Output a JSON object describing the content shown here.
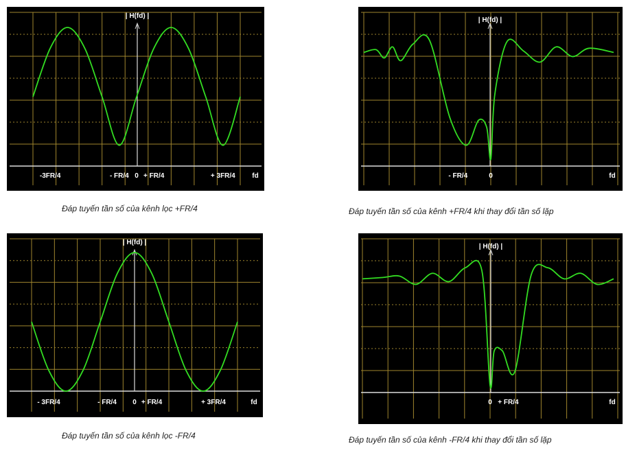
{
  "colors": {
    "panel_bg": "#000000",
    "grid": "#a0862e",
    "curve": "#33dd22",
    "axis": "#dddddd",
    "label": "#ffffff"
  },
  "chart_data": [
    {
      "type": "line",
      "ylabel": "| H(fd) |",
      "xlabel": "fd",
      "tick_labels": [
        "-3FR/4",
        "- FR/4",
        "0",
        "+ FR/4",
        "+ 3FR/4"
      ],
      "x": [
        -1.5,
        -1.25,
        -1.0,
        -0.75,
        -0.5,
        -0.25,
        0,
        0.25,
        0.5,
        0.75,
        1.0,
        1.25,
        1.5
      ],
      "y": [
        0.5,
        0.85,
        1.0,
        0.85,
        0.5,
        0.15,
        0.5,
        0.85,
        1.0,
        0.85,
        0.5,
        0.15,
        0.5
      ],
      "caption": "Đáp tuyến tần số của kênh lọc +FR/4"
    },
    {
      "type": "line",
      "ylabel": "| H(fd) |",
      "xlabel": "fd",
      "tick_labels": [
        "- FR/4",
        "0"
      ],
      "x": [
        -1.55,
        -1.4,
        -1.3,
        -1.2,
        -1.1,
        -0.95,
        -0.75,
        -0.5,
        -0.3,
        -0.15,
        -0.05,
        0,
        0.05,
        0.2,
        0.4,
        0.6,
        0.8,
        1.0,
        1.2,
        1.5
      ],
      "y": [
        0.82,
        0.84,
        0.78,
        0.86,
        0.76,
        0.88,
        0.91,
        0.35,
        0.15,
        0.33,
        0.28,
        0.05,
        0.52,
        0.9,
        0.83,
        0.75,
        0.86,
        0.79,
        0.85,
        0.82
      ],
      "caption": "Đáp tuyến tần số của kênh +FR/4 khi thay đổi tần số lặp"
    },
    {
      "type": "line",
      "ylabel": "| H(fd) |",
      "xlabel": "fd",
      "tick_labels": [
        "- 3FR/4",
        "- FR/4",
        "0",
        "+ FR/4",
        "+ 3FR/4"
      ],
      "x": [
        -1.5,
        -1.25,
        -1.0,
        -0.75,
        -0.5,
        -0.25,
        0,
        0.25,
        0.5,
        0.75,
        1.0,
        1.25,
        1.5
      ],
      "y": [
        0.5,
        0.15,
        0.0,
        0.15,
        0.5,
        0.85,
        1.0,
        0.85,
        0.5,
        0.15,
        0.0,
        0.15,
        0.5
      ],
      "caption": "Đáp tuyến tần số của kênh lọc -FR/4"
    },
    {
      "type": "line",
      "ylabel": "| H(fd) |",
      "xlabel": "fd",
      "tick_labels": [
        "0",
        "+ FR/4"
      ],
      "x": [
        -1.55,
        -1.3,
        -1.1,
        -0.9,
        -0.7,
        -0.5,
        -0.3,
        -0.1,
        0,
        0.05,
        0.15,
        0.3,
        0.5,
        0.7,
        0.9,
        1.1,
        1.3,
        1.5
      ],
      "y": [
        0.82,
        0.83,
        0.84,
        0.78,
        0.86,
        0.8,
        0.9,
        0.88,
        0.05,
        0.3,
        0.3,
        0.15,
        0.85,
        0.9,
        0.82,
        0.86,
        0.78,
        0.82
      ],
      "caption": "Đáp tuyến tần số của kênh -FR/4 khi thay đổi tần số lặp"
    }
  ]
}
